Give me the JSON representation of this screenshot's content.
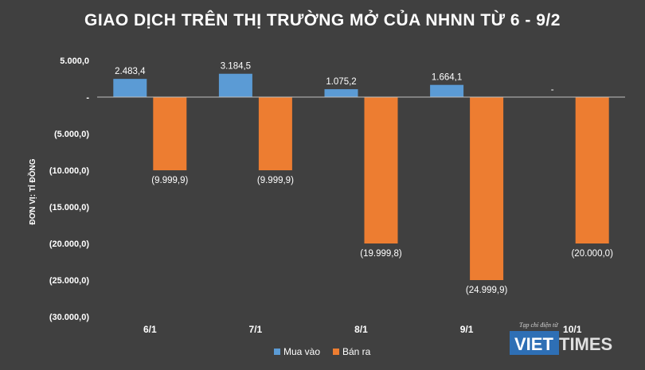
{
  "chart_data": {
    "type": "bar",
    "title": "GIAO DỊCH TRÊN THỊ TRƯỜNG MỞ CỦA NHNN TỪ 6 - 9/2",
    "ylabel": "ĐƠN VỊ: TỈ ĐỒNG",
    "xlabel": "",
    "categories": [
      "6/1",
      "7/1",
      "8/1",
      "9/1",
      "10/1"
    ],
    "ylim": [
      -30000,
      5000
    ],
    "yticks": [
      5000,
      0,
      -5000,
      -10000,
      -15000,
      -20000,
      -25000,
      -30000
    ],
    "ytick_labels": [
      "5.000,0",
      "-",
      "(5.000,0)",
      "(10.000,0)",
      "(15.000,0)",
      "(20.000,0)",
      "(25.000,0)",
      "(30.000,0)"
    ],
    "grid": false,
    "legend_position": "bottom",
    "series": [
      {
        "name": "Mua vào",
        "color": "#5b9bd5",
        "values": [
          2483.4,
          3184.5,
          1075.2,
          1664.1,
          0
        ],
        "labels": [
          "2.483,4",
          "3.184,5",
          "1.075,2",
          "1.664,1",
          "-"
        ]
      },
      {
        "name": "Bán ra",
        "color": "#ed7d31",
        "values": [
          -9999.9,
          -9999.9,
          -19999.8,
          -24999.9,
          -20000.0
        ],
        "labels": [
          "(9.999,9)",
          "(9.999,9)",
          "(19.999,8)",
          "(24.999,9)",
          "(20.000,0)"
        ]
      }
    ]
  },
  "watermark": {
    "tagline": "Tạp chí điện tử",
    "brand_left": "VIET",
    "brand_right": "TIMES",
    "brand_color": "#2e6fb5"
  }
}
